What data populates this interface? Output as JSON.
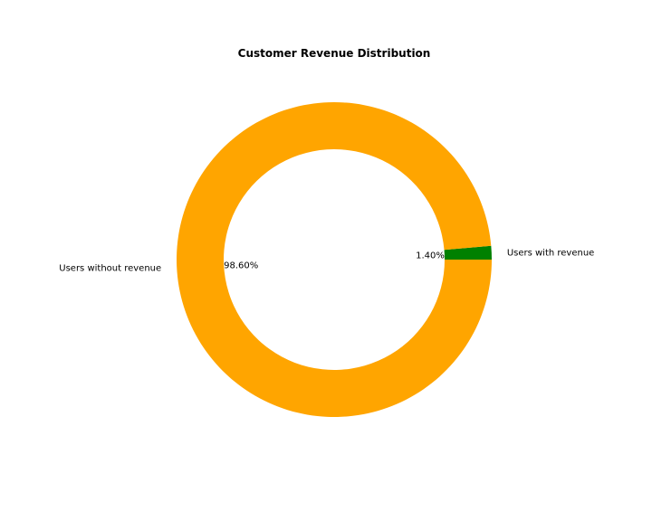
{
  "chart_data": {
    "type": "pie",
    "variant": "donut",
    "title": "Customer Revenue Distribution",
    "slices": [
      {
        "label": "Users with revenue",
        "value": 1.4,
        "pct_label": "1.40%",
        "color": "#008000"
      },
      {
        "label": "Users without revenue",
        "value": 98.6,
        "pct_label": "98.60%",
        "color": "#FFA500"
      }
    ],
    "start_angle_deg": 0,
    "direction": "counterclockwise",
    "legend": "none"
  }
}
